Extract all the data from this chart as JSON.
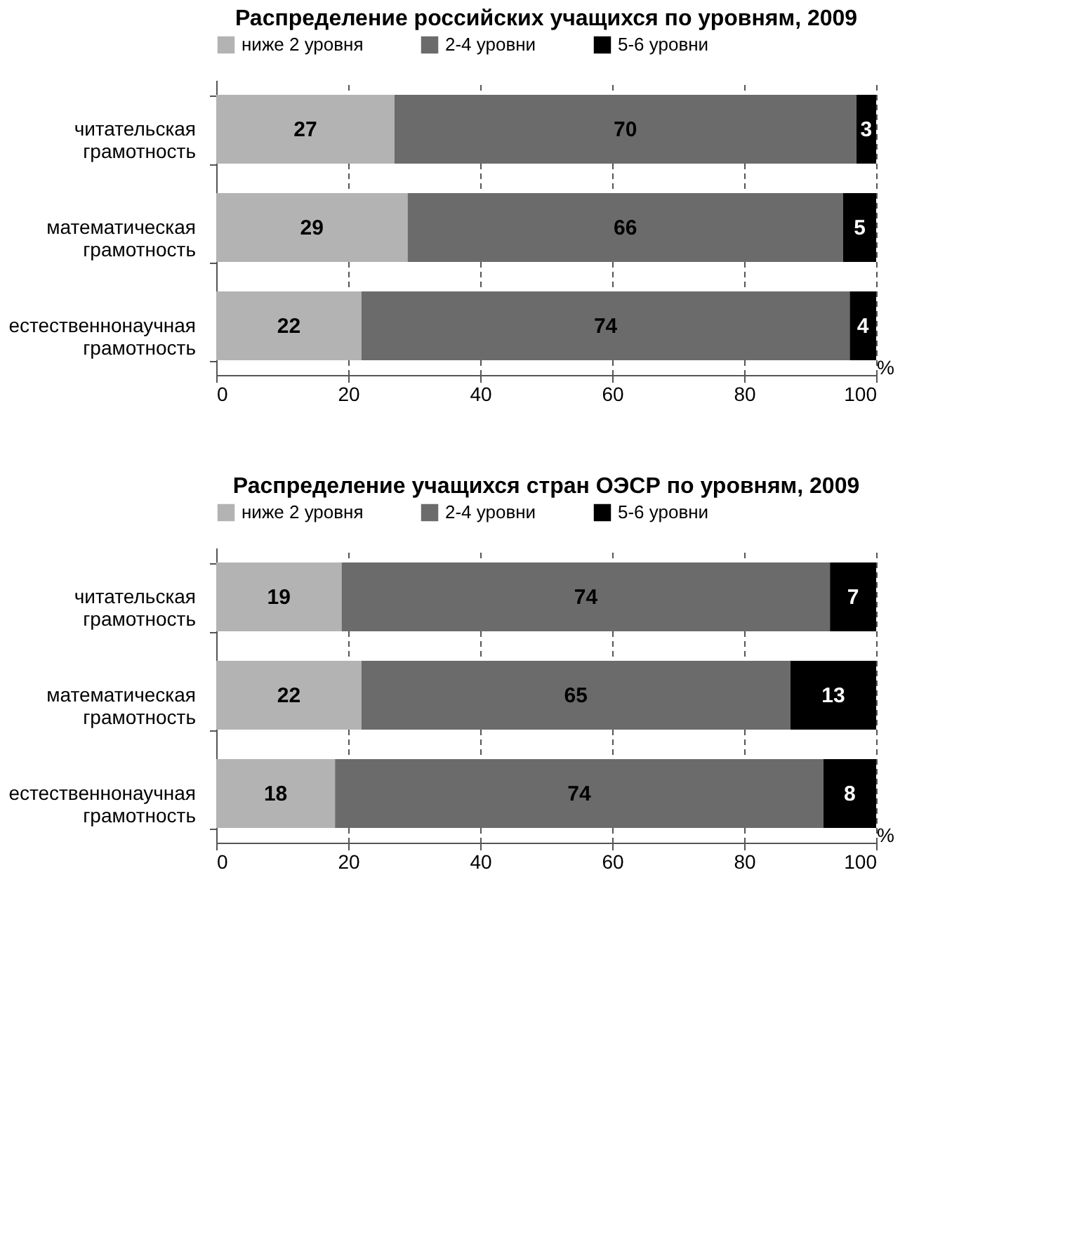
{
  "chart_data": [
    {
      "type": "bar",
      "orientation": "horizontal",
      "stacked": true,
      "title": "Распределение российских учащихся по уровням, 2009",
      "xlabel": "%",
      "categories": [
        "читательская грамотность",
        "математическая грамотность",
        "естественнонаучная грамотность"
      ],
      "series": [
        {
          "name": "ниже 2 уровня",
          "color": "#b3b3b3",
          "values": [
            27,
            29,
            22
          ]
        },
        {
          "name": "2-4 уровни",
          "color": "#6b6b6b",
          "values": [
            70,
            66,
            74
          ]
        },
        {
          "name": "5-6 уровни",
          "color": "#000000",
          "values": [
            3,
            5,
            4
          ]
        }
      ],
      "xlim": [
        0,
        100
      ],
      "xticks": [
        0,
        20,
        40,
        60,
        80,
        100
      ],
      "grid": "x",
      "legend": "top",
      "data_labels": true
    },
    {
      "type": "bar",
      "orientation": "horizontal",
      "stacked": true,
      "title": "Распределение учащихся  стран ОЭСР по уровням, 2009",
      "xlabel": "%",
      "categories": [
        "читательская грамотность",
        "математическая грамотность",
        "естественнонаучная грамотность"
      ],
      "series": [
        {
          "name": "ниже 2 уровня",
          "color": "#b3b3b3",
          "values": [
            19,
            22,
            18
          ]
        },
        {
          "name": "2-4 уровни",
          "color": "#6b6b6b",
          "values": [
            74,
            65,
            74
          ]
        },
        {
          "name": "5-6 уровни",
          "color": "#000000",
          "values": [
            7,
            13,
            8
          ]
        }
      ],
      "xlim": [
        0,
        100
      ],
      "xticks": [
        0,
        20,
        40,
        60,
        80,
        100
      ],
      "grid": "x",
      "legend": "top",
      "data_labels": true
    }
  ]
}
